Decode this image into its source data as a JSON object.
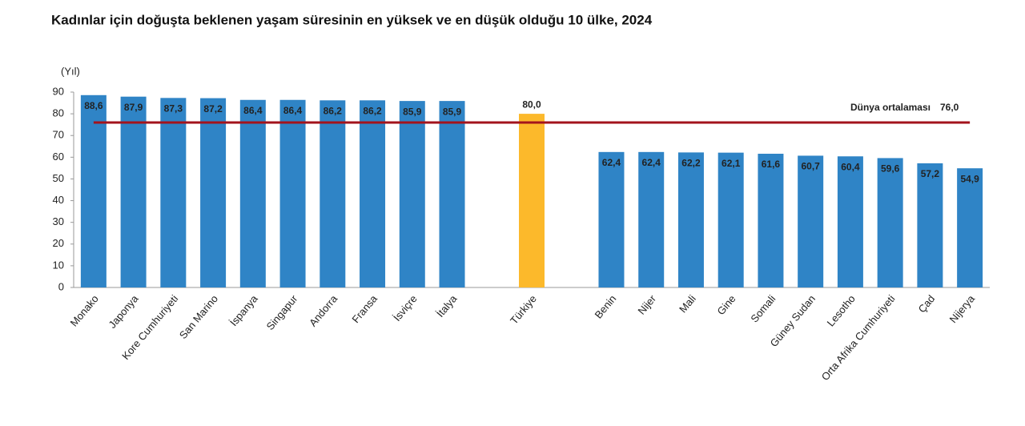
{
  "chart_data": {
    "type": "bar",
    "title": "Kadınlar için doğuşta beklenen yaşam süresinin en yüksek ve en düşük olduğu 10 ülke, 2024",
    "y_label": "(Yıl)",
    "categories": [
      "Monako",
      "Japonya",
      "Kore Cumhuriyeti",
      "San Marino",
      "İspanya",
      "Singapur",
      "Andorra",
      "Fransa",
      "İsviçre",
      "İtalya",
      null,
      "Türkiye",
      null,
      "Benin",
      "Nijer",
      "Mali",
      "Gine",
      "Somali",
      "Güney Sudan",
      "Lesotho",
      "Orta Afrika Cumhuriyeti",
      "Çad",
      "Nijerya"
    ],
    "values": [
      88.6,
      87.9,
      87.3,
      87.2,
      86.4,
      86.4,
      86.2,
      86.2,
      85.9,
      85.9,
      null,
      80.0,
      null,
      62.4,
      62.4,
      62.2,
      62.1,
      61.6,
      60.7,
      60.4,
      59.6,
      57.2,
      54.9
    ],
    "value_labels": [
      "88,6",
      "87,9",
      "87,3",
      "87,2",
      "86,4",
      "86,4",
      "86,2",
      "86,2",
      "85,9",
      "85,9",
      null,
      "80,0",
      null,
      "62,4",
      "62,4",
      "62,2",
      "62,1",
      "61,6",
      "60,7",
      "60,4",
      "59,6",
      "57,2",
      "54,9"
    ],
    "color": "#2f84c6",
    "highlight": 11,
    "highlight_color": "#fcb92b",
    "ylim": [
      0,
      90
    ],
    "yticks": [
      0,
      10,
      20,
      30,
      40,
      50,
      60,
      70,
      80,
      90
    ],
    "grid": false,
    "reference": {
      "label": "Dünya ortalaması",
      "value": 76.0,
      "value_label": "76,0",
      "color": "#a3131c"
    }
  }
}
